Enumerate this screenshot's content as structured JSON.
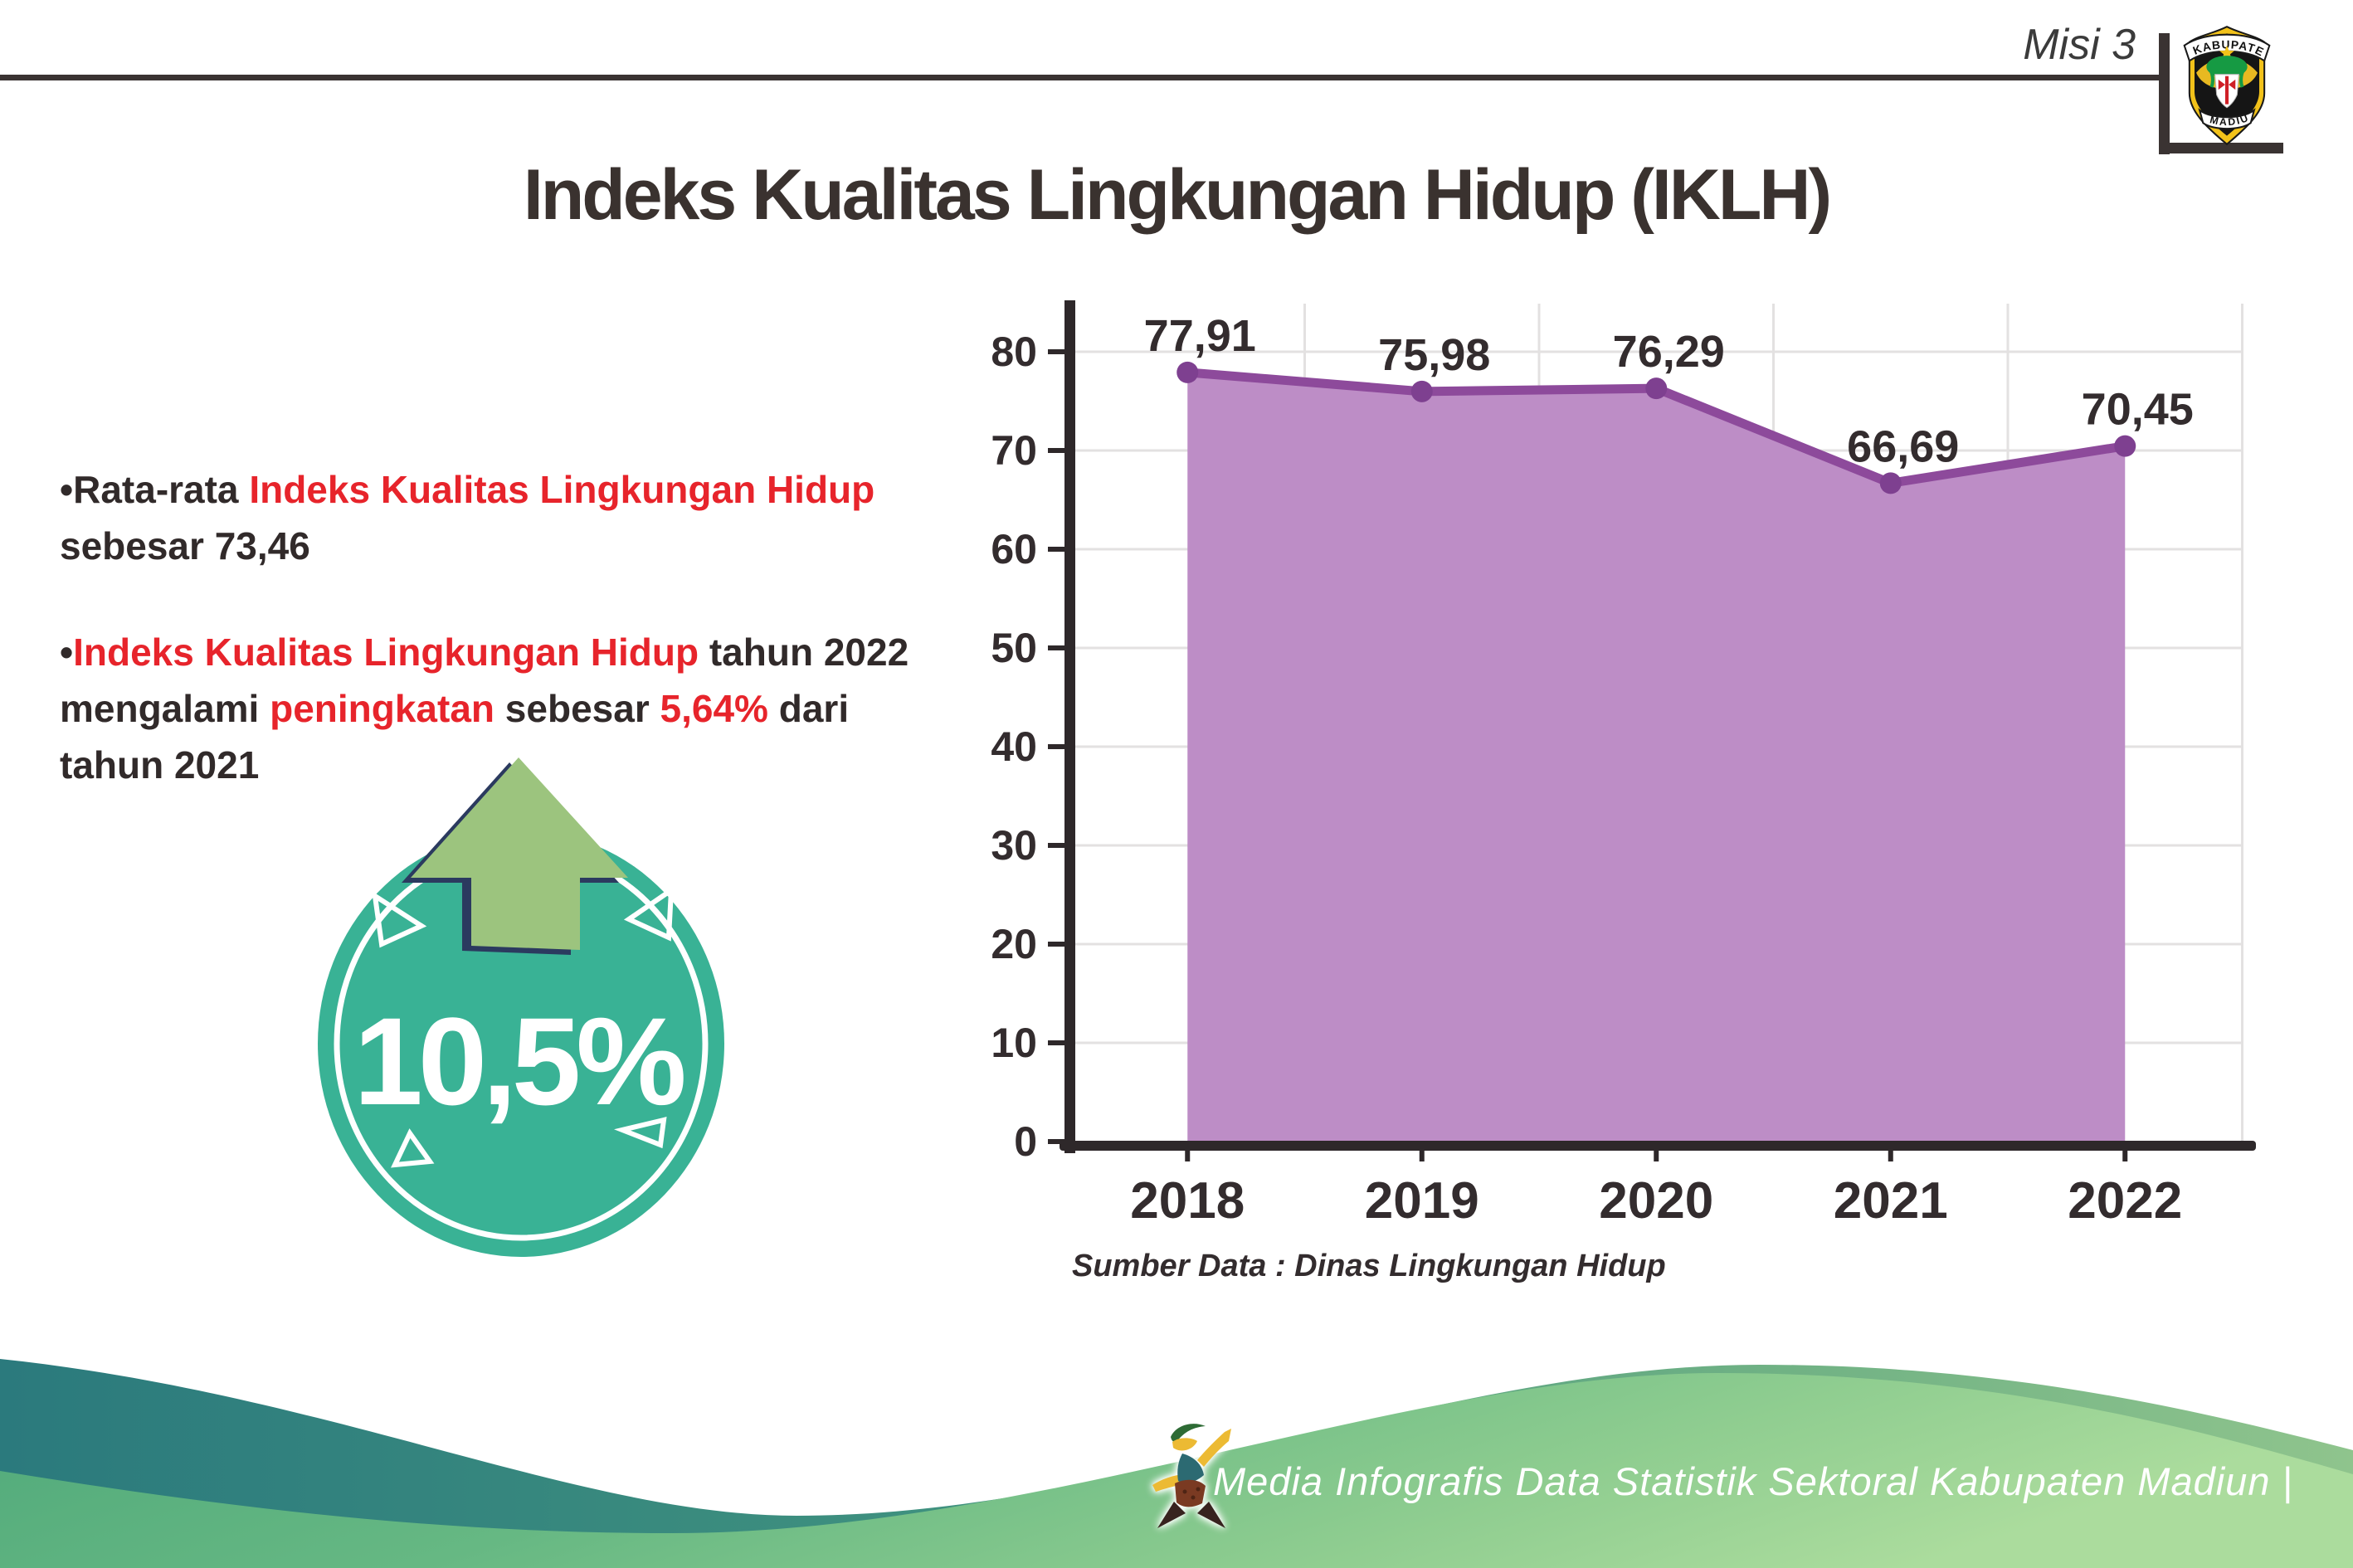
{
  "header": {
    "misi_label": "Misi 3",
    "logo_top_text": "KABUPATEN",
    "logo_bottom_text": "MADIUN"
  },
  "title": "Indeks Kualitas Lingkungan Hidup (IKLH)",
  "bullets": {
    "bullet_glyph": "•",
    "b1_dark1": "Rata-rata ",
    "b1_red1": "Indeks Kualitas Lingkungan Hidup",
    "b1_dark2": "sebesar 73,46",
    "b2_red1": "Indeks Kualitas Lingkungan Hidup",
    "b2_dark1": " tahun 2022",
    "b2_dark2": "mengalami ",
    "b2_red2": "peningkatan",
    "b2_dark3": " sebesar ",
    "b2_red3": "5,64%",
    "b2_dark4": " dari",
    "b2_dark5": "tahun 2021"
  },
  "badge": {
    "value": "10,5%"
  },
  "chart_data": {
    "type": "area",
    "categories": [
      "2018",
      "2019",
      "2020",
      "2021",
      "2022"
    ],
    "values": [
      77.91,
      75.98,
      76.29,
      66.69,
      70.45
    ],
    "point_labels": [
      "77,91",
      "75,98",
      "76,29",
      "66,69",
      "70,45"
    ],
    "ylim": [
      0,
      80
    ],
    "ytick_step": 10,
    "grid": true,
    "legend": "none",
    "xlabel": "",
    "ylabel": "",
    "source": "Sumber Data : Dinas Lingkungan Hidup",
    "colors": {
      "line": "#8d4a9b",
      "fill": "#bd8dc6",
      "dot": "#7e4090",
      "axis": "#2e282a",
      "grid": "#e3e1e1",
      "text": "#332c2e"
    }
  },
  "footer": {
    "credit": "Media Infografis Data Statistik Sektoral Kabupaten Madiun |"
  },
  "theme": {
    "red": "#e7242b",
    "dark_text": "#312a2a",
    "badge_teal": "#39b295",
    "arrow_green": "#9cc47e",
    "arrow_outline_navy": "#2b3a5f"
  }
}
